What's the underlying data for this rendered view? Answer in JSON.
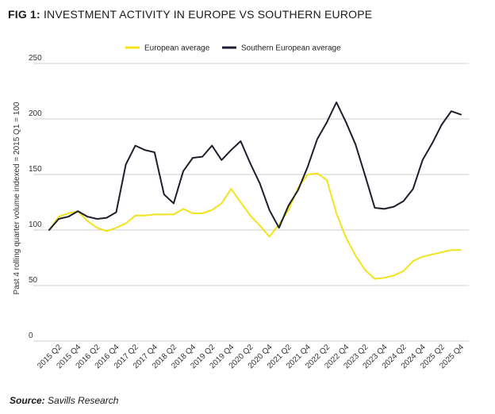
{
  "title": {
    "fig": "FIG 1:",
    "text": "INVESTMENT ACTIVITY IN EUROPE VS SOUTHERN EUROPE"
  },
  "source": {
    "label": "Source:",
    "text": "Savills Research"
  },
  "chart_data": {
    "type": "line",
    "title": "INVESTMENT ACTIVITY IN EUROPE VS SOUTHERN EUROPE",
    "xlabel": "",
    "ylabel": "Past 4 rolling quarter volume indexed = 2015 Q1 = 100",
    "ylim": [
      0,
      250
    ],
    "yticks": [
      0,
      50,
      100,
      150,
      200,
      250
    ],
    "grid": "horizontal",
    "legend_position": "top-center",
    "x": [
      "2015 Q1",
      "2015 Q2",
      "2015 Q3",
      "2015 Q4",
      "2016 Q1",
      "2016 Q2",
      "2016 Q3",
      "2016 Q4",
      "2017 Q1",
      "2017 Q2",
      "2017 Q3",
      "2017 Q4",
      "2018 Q1",
      "2018 Q2",
      "2018 Q3",
      "2018 Q4",
      "2019 Q1",
      "2019 Q2",
      "2019 Q3",
      "2019 Q4",
      "2020 Q1",
      "2020 Q2",
      "2020 Q3",
      "2020 Q4",
      "2021 Q1",
      "2021 Q2",
      "2021 Q3",
      "2021 Q4",
      "2022 Q1",
      "2022 Q2",
      "2022 Q3",
      "2022 Q4",
      "2023 Q1",
      "2023 Q2",
      "2023 Q3",
      "2023 Q4",
      "2024 Q1",
      "2024 Q2",
      "2024 Q3",
      "2024 Q4",
      "2025 Q1",
      "2025 Q2",
      "2025 Q3",
      "2025 Q4"
    ],
    "x_tick_labels": [
      "2015 Q2",
      "2015 Q4",
      "2016 Q2",
      "2016 Q4",
      "2017 Q2",
      "2017 Q4",
      "2018 Q2",
      "2018 Q4",
      "2019 Q2",
      "2019 Q4",
      "2020 Q2",
      "2020 Q4",
      "2021 Q2",
      "2021 Q4",
      "2022 Q2",
      "2022 Q4",
      "2023 Q2",
      "2023 Q4",
      "2024 Q2",
      "2024 Q4",
      "2025 Q2",
      "2025 Q4"
    ],
    "series": [
      {
        "name": "European average",
        "color": "#f2e21a",
        "values": [
          100,
          112,
          115,
          117,
          108,
          102,
          99,
          102,
          106,
          113,
          113,
          114,
          114,
          114,
          119,
          115,
          115,
          118,
          124,
          137,
          125,
          113,
          104,
          94,
          105,
          118,
          138,
          150,
          151,
          145,
          115,
          93,
          77,
          64,
          56,
          57,
          59,
          63,
          72,
          76,
          78,
          80,
          82,
          82
        ]
      },
      {
        "name": "Southern European average",
        "color": "#1b1e2c",
        "values": [
          100,
          110,
          112,
          117,
          112,
          110,
          111,
          116,
          159,
          176,
          172,
          170,
          132,
          124,
          153,
          165,
          166,
          176,
          163,
          172,
          180,
          160,
          142,
          118,
          102,
          122,
          136,
          157,
          182,
          197,
          215,
          197,
          177,
          149,
          120,
          119,
          121,
          126,
          137,
          163,
          178,
          195,
          207,
          204
        ]
      }
    ]
  }
}
